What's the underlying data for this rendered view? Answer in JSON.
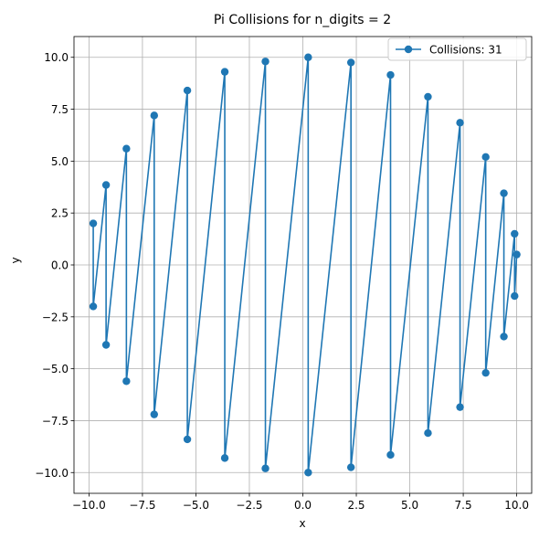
{
  "chart_data": {
    "type": "line",
    "title": "Pi Collisions for n_digits = 2",
    "xlabel": "x",
    "ylabel": "y",
    "xlim": [
      -10.7,
      10.7
    ],
    "ylim": [
      -11,
      11
    ],
    "xticks": [
      -10.0,
      -7.5,
      -5.0,
      -2.5,
      0.0,
      2.5,
      5.0,
      7.5,
      10.0
    ],
    "xtick_labels": [
      "−10.0",
      "−7.5",
      "−5.0",
      "−2.5",
      "0.0",
      "2.5",
      "5.0",
      "7.5",
      "10.0"
    ],
    "yticks": [
      -10.0,
      -7.5,
      -5.0,
      -2.5,
      0.0,
      2.5,
      5.0,
      7.5,
      10.0
    ],
    "ytick_labels": [
      "−10.0",
      "−7.5",
      "−5.0",
      "−2.5",
      "0.0",
      "2.5",
      "5.0",
      "7.5",
      "10.0"
    ],
    "grid": true,
    "legend_position": "top-right",
    "series": [
      {
        "name": "Collisions: 31",
        "color": "#1f77b4",
        "marker": "circle",
        "x": [
          -9.8,
          -9.8,
          -9.2,
          -9.2,
          -8.25,
          -8.25,
          -6.95,
          -6.95,
          -5.4,
          -5.4,
          -3.65,
          -3.65,
          -1.75,
          -1.75,
          0.25,
          0.25,
          2.25,
          2.25,
          4.1,
          4.1,
          5.85,
          5.85,
          7.35,
          7.35,
          8.55,
          8.55,
          9.4,
          9.4,
          9.9,
          9.9,
          10.0
        ],
        "y": [
          2.0,
          -2.0,
          3.85,
          -3.85,
          5.6,
          -5.6,
          7.2,
          -7.2,
          8.4,
          -8.4,
          9.3,
          -9.3,
          9.8,
          -9.8,
          10.0,
          -10.0,
          9.75,
          -9.75,
          9.15,
          -9.15,
          8.1,
          -8.1,
          6.85,
          -6.85,
          5.2,
          -5.2,
          3.45,
          -3.45,
          1.5,
          -1.5,
          0.5
        ]
      }
    ]
  }
}
